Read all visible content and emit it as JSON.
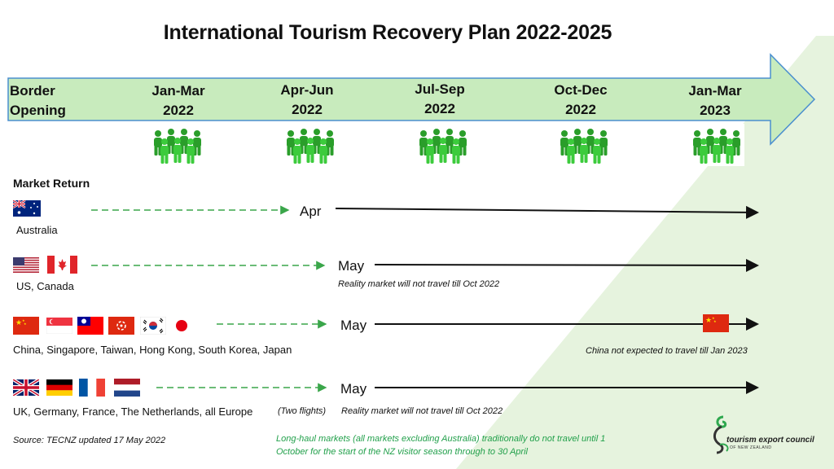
{
  "title": "International Tourism Recovery Plan 2022-2025",
  "timeline": {
    "start": [
      "Border",
      "Opening"
    ],
    "periods": [
      {
        "line1": "Jan-Mar",
        "line2": "2022"
      },
      {
        "line1": "Apr-Jun",
        "line2": "2022"
      },
      {
        "line1": "Jul-Sep",
        "line2": "2022"
      },
      {
        "line1": "Oct-Dec",
        "line2": "2022"
      },
      {
        "line1": "Jan-Mar",
        "line2": "2023"
      }
    ],
    "icon": "people-group-icon"
  },
  "section_title": "Market Return",
  "markets": [
    {
      "label": "Australia",
      "month": "Apr",
      "note": "",
      "flags": [
        "australia-flag"
      ]
    },
    {
      "label": "US, Canada",
      "month": "May",
      "note": "Reality market will not travel till Oct 2022",
      "flags": [
        "us-flag",
        "canada-flag"
      ]
    },
    {
      "label": "China, Singapore, Taiwan, Hong Kong, South Korea, Japan",
      "month": "May",
      "note": "China not expected to travel till Jan 2023",
      "flags": [
        "china-flag",
        "singapore-flag",
        "taiwan-flag",
        "hong-kong-flag",
        "south-korea-flag",
        "japan-flag"
      ]
    },
    {
      "label": "UK, Germany, France, The Netherlands, all Europe",
      "month": "May",
      "note": "Reality market will not travel till Oct 2022",
      "extra": "(Two flights)",
      "flags": [
        "uk-flag",
        "germany-flag",
        "france-flag",
        "netherlands-flag"
      ]
    }
  ],
  "footer": {
    "source": "Source: TECNZ updated 17 May 2022",
    "long_haul": [
      "Long-haul markets (all markets excluding Australia) traditionally do not travel until 1",
      "October for the start of the NZ visitor season through to 30 April"
    ],
    "logo_text": "tourism export council",
    "logo_sub": "OF NEW ZEALAND"
  },
  "colors": {
    "arrow_fill": "#c8ebbd",
    "arrow_border": "#4a8fcf",
    "people": "#2fb52f",
    "dashed": "#3aa64a",
    "green_text": "#22a04b",
    "bg_triangle": "#e4f2dc"
  }
}
